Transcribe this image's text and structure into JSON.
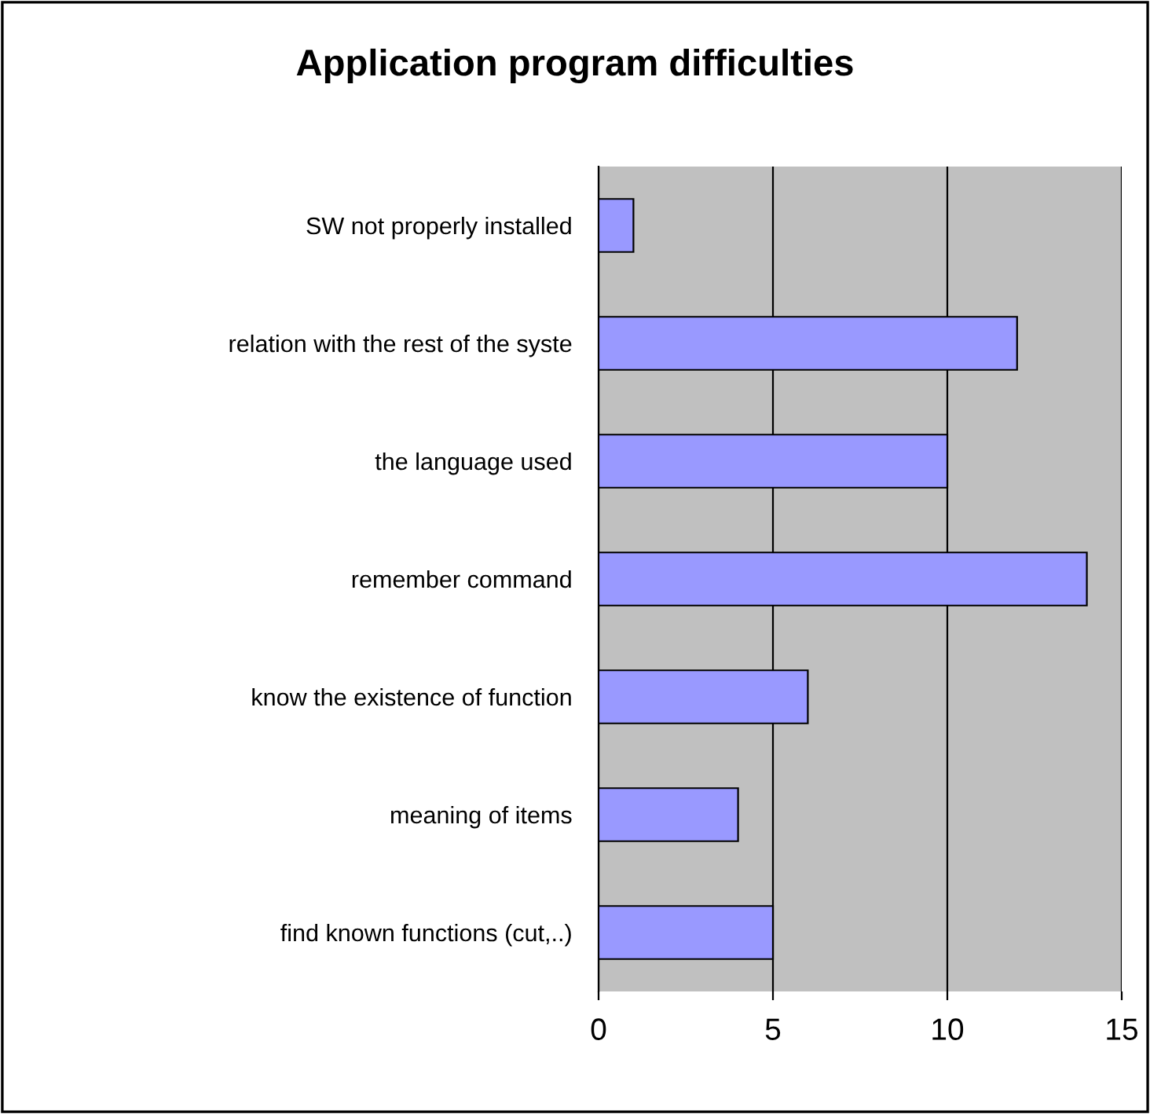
{
  "chart_data": {
    "type": "bar",
    "orientation": "horizontal",
    "title": "Application program difficulties",
    "categories": [
      "SW not properly installed",
      "relation with the rest of the syste",
      "the language used",
      "remember command",
      "know the existence of function",
      "meaning of items",
      "find known functions (cut,..)"
    ],
    "values": [
      1,
      12,
      10,
      14,
      6,
      4,
      5
    ],
    "color": "#9999ff",
    "xlim": [
      0,
      15
    ],
    "xticks": [
      0,
      5,
      10,
      15
    ],
    "grid": "x",
    "legend": false
  }
}
